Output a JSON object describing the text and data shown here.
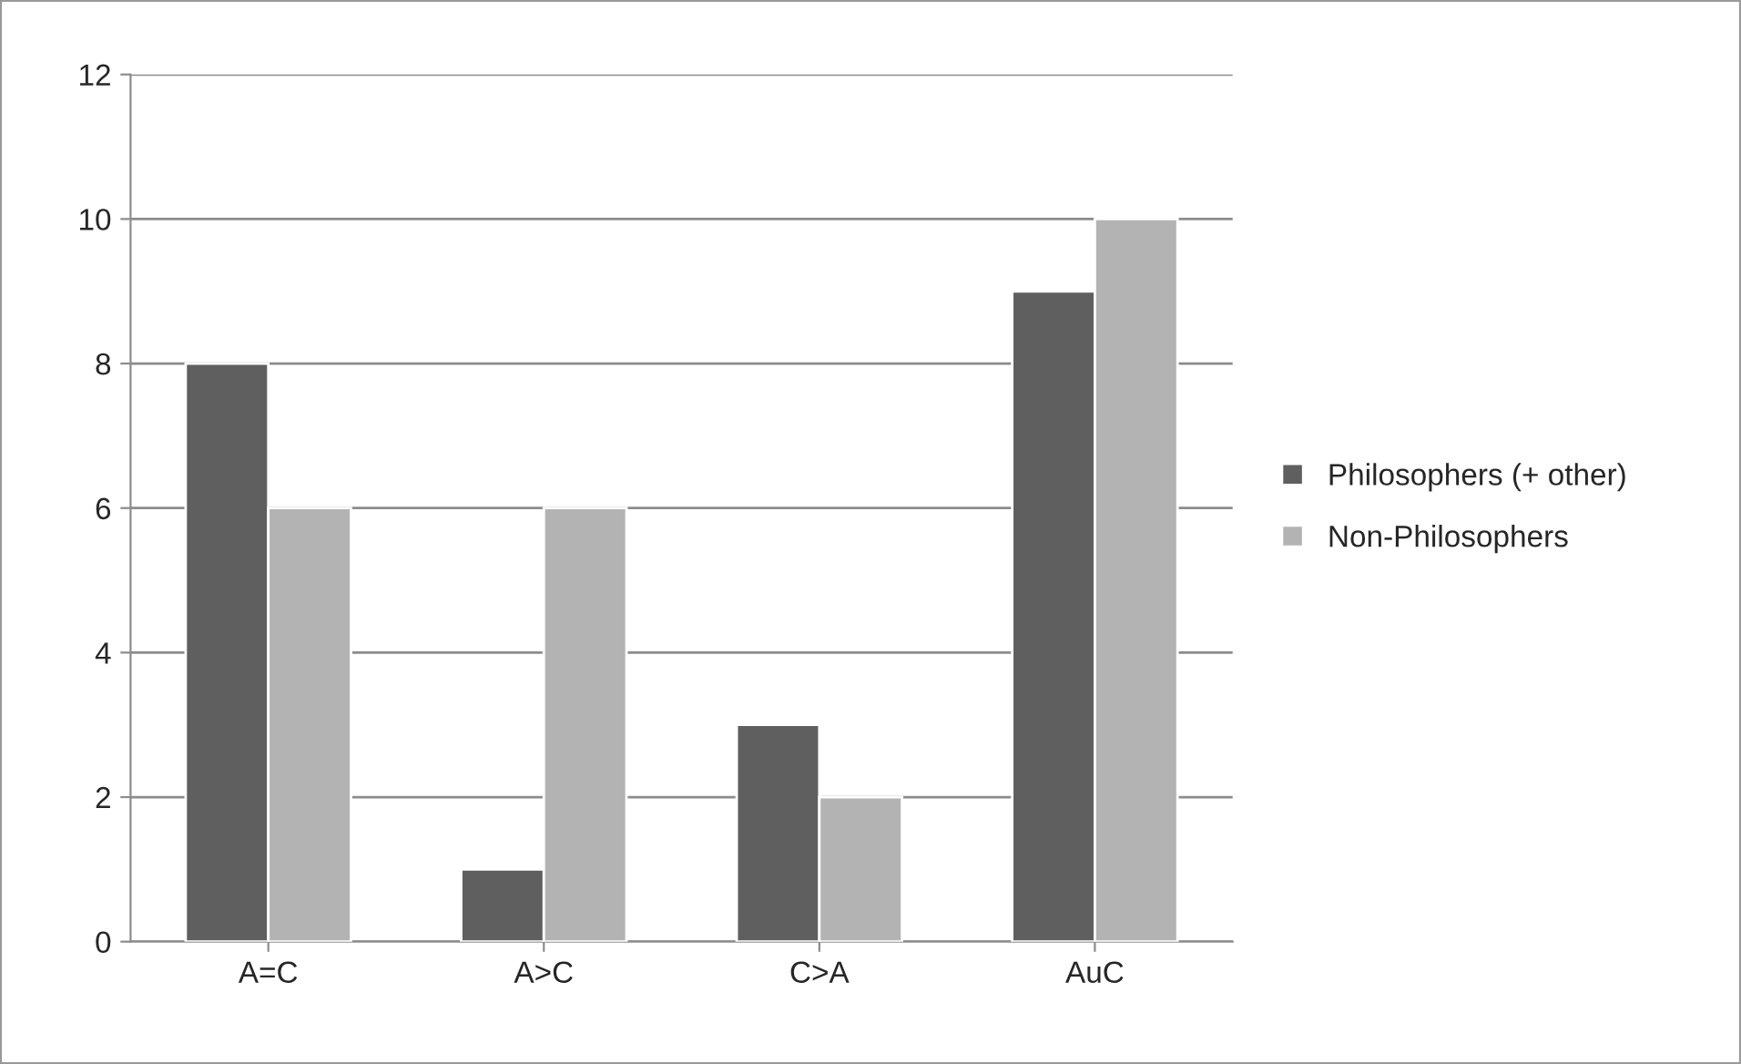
{
  "chart_data": {
    "type": "bar",
    "categories": [
      "A=C",
      "A>C",
      "C>A",
      "AuC"
    ],
    "series": [
      {
        "name": "Philosophers (+ other)",
        "color": "#5f5f5f",
        "values": [
          8,
          1,
          3,
          9
        ]
      },
      {
        "name": "Non-Philosophers",
        "color": "#b3b3b3",
        "values": [
          6,
          6,
          2,
          10
        ]
      }
    ],
    "ylim": [
      0,
      12
    ],
    "yticks": [
      0,
      2,
      4,
      6,
      8,
      10,
      12
    ],
    "grid": "y",
    "legend": "right"
  }
}
